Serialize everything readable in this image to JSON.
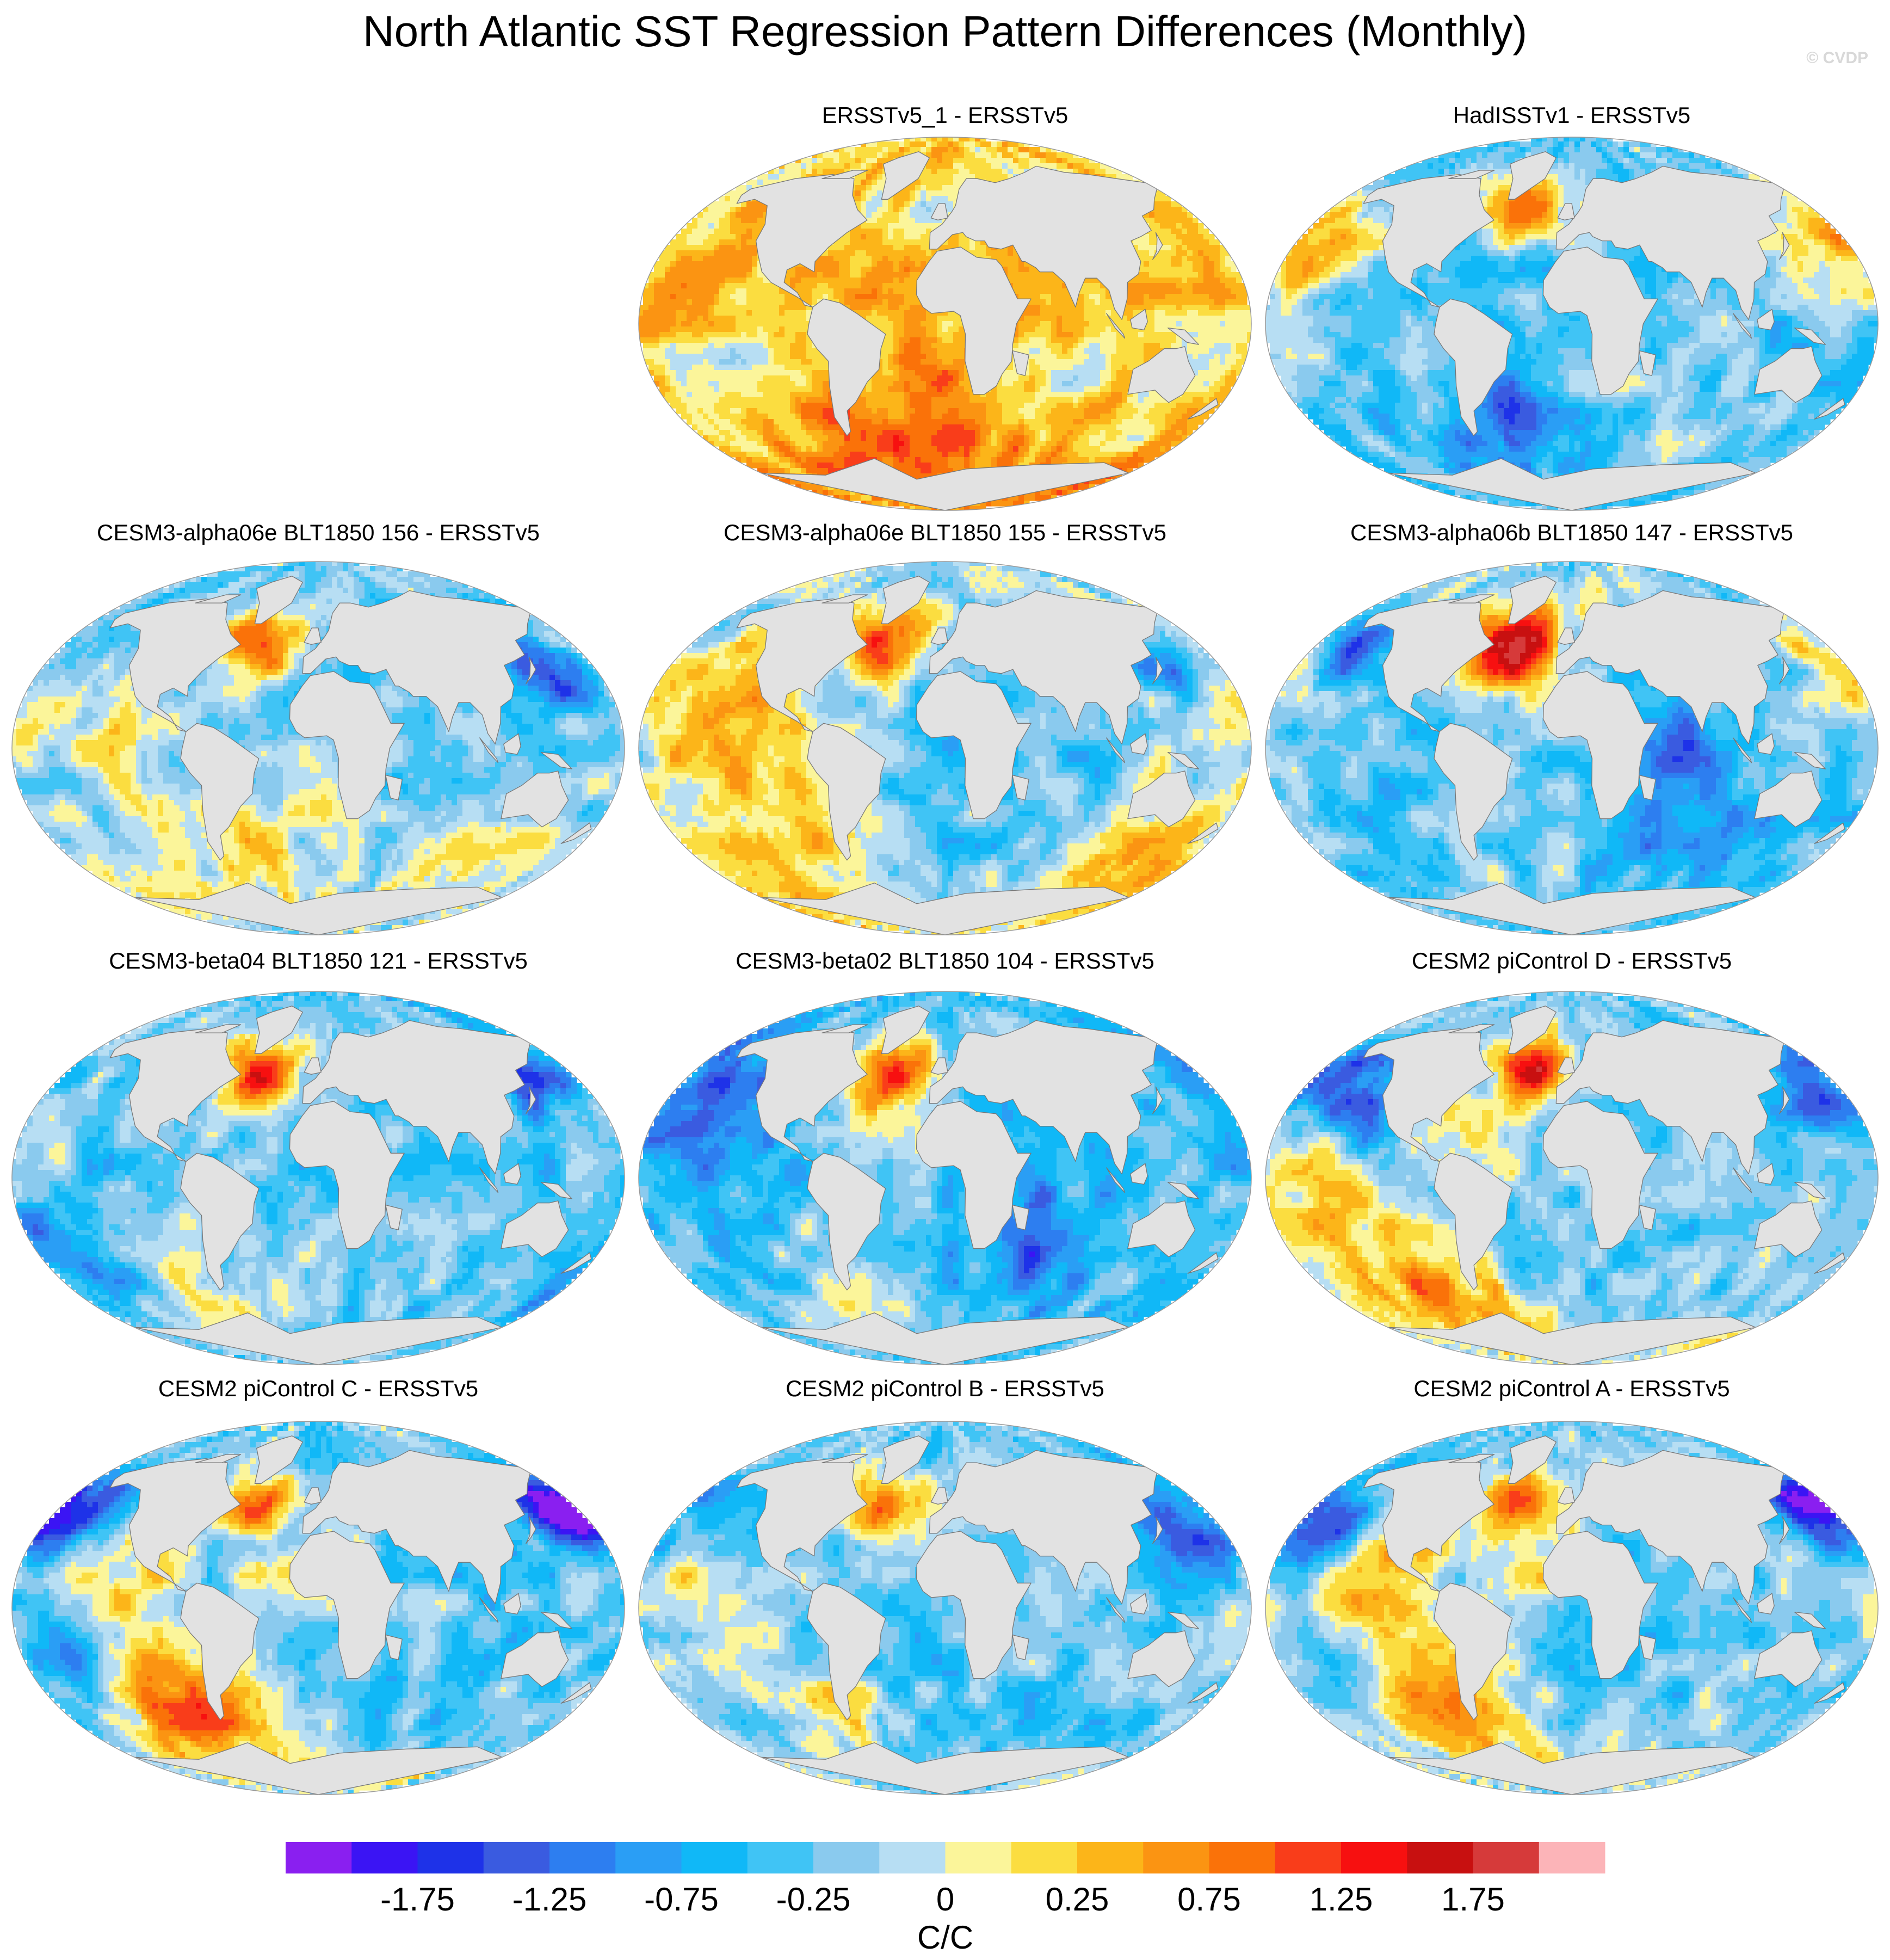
{
  "chart_data": {
    "type": "heatmap",
    "title": "North Atlantic SST Regression Pattern Differences (Monthly)",
    "watermark": "© CVDP",
    "panels": [
      {
        "title": "ERSSTv5_1 - ERSSTv5",
        "pattern": "warm",
        "blobs": [
          {
            "lon": -160,
            "lat": 25,
            "r": 35,
            "v": 0.3
          },
          {
            "lon": -20,
            "lat": 10,
            "r": 30,
            "v": 0.3
          },
          {
            "lon": 30,
            "lat": -50,
            "r": 45,
            "v": 0.6
          },
          {
            "lon": -80,
            "lat": -45,
            "r": 35,
            "v": 0.4
          },
          {
            "lon": 70,
            "lat": -30,
            "r": 22,
            "v": -0.4
          },
          {
            "lon": -130,
            "lat": -30,
            "r": 18,
            "v": -0.3
          },
          {
            "lon": -30,
            "lat": 45,
            "r": 14,
            "v": -0.3
          }
        ]
      },
      {
        "title": "HadISSTv1 - ERSSTv5",
        "pattern": "cool",
        "blobs": [
          {
            "lon": -30,
            "lat": 55,
            "r": 12,
            "v": 1.3
          },
          {
            "lon": -160,
            "lat": 35,
            "r": 20,
            "v": 0.8
          },
          {
            "lon": 160,
            "lat": 35,
            "r": 18,
            "v": 0.6
          },
          {
            "lon": 40,
            "lat": -50,
            "r": 25,
            "v": 0.2
          },
          {
            "lon": -40,
            "lat": -40,
            "r": 20,
            "v": -1.1
          }
        ]
      },
      {
        "title": "CESM3-alpha06e BLT1850 156 - ERSSTv5",
        "pattern": "cool",
        "blobs": [
          {
            "lon": -40,
            "lat": 50,
            "r": 12,
            "v": 1.6
          },
          {
            "lon": -125,
            "lat": 10,
            "r": 40,
            "v": 0.5
          },
          {
            "lon": -60,
            "lat": -45,
            "r": 25,
            "v": 0.5
          },
          {
            "lon": 120,
            "lat": -45,
            "r": 30,
            "v": 0.5
          },
          {
            "lon": 0,
            "lat": -40,
            "r": 20,
            "v": 0.4
          },
          {
            "lon": 150,
            "lat": 35,
            "r": 15,
            "v": -0.9
          }
        ]
      },
      {
        "title": "CESM3-alpha06e BLT1850 155 - ERSSTv5",
        "pattern": "cool",
        "blobs": [
          {
            "lon": -40,
            "lat": 50,
            "r": 12,
            "v": 1.5
          },
          {
            "lon": -140,
            "lat": 25,
            "r": 35,
            "v": 0.8
          },
          {
            "lon": -115,
            "lat": -10,
            "r": 35,
            "v": 0.6
          },
          {
            "lon": -80,
            "lat": -50,
            "r": 25,
            "v": 0.5
          },
          {
            "lon": 140,
            "lat": -50,
            "r": 25,
            "v": 1.0
          },
          {
            "lon": 150,
            "lat": 40,
            "r": 12,
            "v": -1.0
          }
        ]
      },
      {
        "title": "CESM3-alpha06b BLT1850 147 - ERSSTv5",
        "pattern": "cool",
        "blobs": [
          {
            "lon": -40,
            "lat": 50,
            "r": 16,
            "v": 2.2
          },
          {
            "lon": 170,
            "lat": 40,
            "r": 15,
            "v": 1.0
          },
          {
            "lon": -150,
            "lat": 50,
            "r": 10,
            "v": -1.4
          },
          {
            "lon": -20,
            "lat": -60,
            "r": 25,
            "v": 0.3
          },
          {
            "lon": 60,
            "lat": -20,
            "r": 30,
            "v": -0.9
          }
        ]
      },
      {
        "title": "CESM3-beta04 BLT1850 121 - ERSSTv5",
        "pattern": "cool",
        "blobs": [
          {
            "lon": -40,
            "lat": 50,
            "r": 12,
            "v": 1.7
          },
          {
            "lon": -150,
            "lat": 15,
            "r": 30,
            "v": 0.4
          },
          {
            "lon": -90,
            "lat": -50,
            "r": 25,
            "v": 0.7
          },
          {
            "lon": 150,
            "lat": 45,
            "r": 12,
            "v": -1.0
          },
          {
            "lon": -150,
            "lat": -30,
            "r": 30,
            "v": -0.8
          }
        ]
      },
      {
        "title": "CESM3-beta02 BLT1850 104 - ERSSTv5",
        "pattern": "cool",
        "blobs": [
          {
            "lon": -40,
            "lat": 50,
            "r": 14,
            "v": 1.7
          },
          {
            "lon": -70,
            "lat": -50,
            "r": 15,
            "v": 0.6
          },
          {
            "lon": -150,
            "lat": 30,
            "r": 30,
            "v": -0.9
          },
          {
            "lon": 60,
            "lat": -30,
            "r": 25,
            "v": -0.8
          }
        ]
      },
      {
        "title": "CESM2 piControl D - ERSSTv5",
        "pattern": "cool",
        "blobs": [
          {
            "lon": -30,
            "lat": 50,
            "r": 10,
            "v": 2.0
          },
          {
            "lon": -140,
            "lat": 5,
            "r": 40,
            "v": 0.8
          },
          {
            "lon": -40,
            "lat": 15,
            "r": 20,
            "v": 0.4
          },
          {
            "lon": -100,
            "lat": -55,
            "r": 25,
            "v": 1.0
          },
          {
            "lon": -150,
            "lat": 40,
            "r": 15,
            "v": -1.5
          },
          {
            "lon": 160,
            "lat": 40,
            "r": 15,
            "v": -1.3
          },
          {
            "lon": -120,
            "lat": 25,
            "r": 12,
            "v": -1.0
          }
        ]
      },
      {
        "title": "CESM2 piControl C - ERSSTv5",
        "pattern": "cool",
        "blobs": [
          {
            "lon": -40,
            "lat": 48,
            "r": 10,
            "v": 1.5
          },
          {
            "lon": -130,
            "lat": 0,
            "r": 40,
            "v": 0.8
          },
          {
            "lon": -20,
            "lat": 15,
            "r": 18,
            "v": 0.6
          },
          {
            "lon": -90,
            "lat": -50,
            "r": 22,
            "v": 1.3
          },
          {
            "lon": -165,
            "lat": 40,
            "r": 15,
            "v": -1.8
          },
          {
            "lon": 160,
            "lat": 45,
            "r": 12,
            "v": -1.7
          },
          {
            "lon": -150,
            "lat": -20,
            "r": 20,
            "v": -1.2
          }
        ]
      },
      {
        "title": "CESM2 piControl B - ERSSTv5",
        "pattern": "cool",
        "blobs": [
          {
            "lon": -40,
            "lat": 50,
            "r": 12,
            "v": 1.5
          },
          {
            "lon": -150,
            "lat": 5,
            "r": 25,
            "v": 0.6
          },
          {
            "lon": -80,
            "lat": -50,
            "r": 20,
            "v": 0.6
          },
          {
            "lon": 160,
            "lat": 40,
            "r": 15,
            "v": -1.0
          }
        ]
      },
      {
        "title": "CESM2 piControl A - ERSSTv5",
        "pattern": "cool",
        "blobs": [
          {
            "lon": -35,
            "lat": 50,
            "r": 10,
            "v": 1.3
          },
          {
            "lon": -130,
            "lat": 0,
            "r": 45,
            "v": 1.1
          },
          {
            "lon": -20,
            "lat": 15,
            "r": 18,
            "v": 0.5
          },
          {
            "lon": -90,
            "lat": -50,
            "r": 20,
            "v": 0.8
          },
          {
            "lon": -160,
            "lat": 40,
            "r": 15,
            "v": -1.6
          },
          {
            "lon": 160,
            "lat": 45,
            "r": 12,
            "v": -1.9
          },
          {
            "lon": -150,
            "lat": -20,
            "r": 20,
            "v": -1.2
          }
        ]
      }
    ],
    "colorbar": {
      "label": "C/C",
      "colors": [
        "#8a1ff0",
        "#3b14f4",
        "#1e32e8",
        "#3a5be0",
        "#2d7ef0",
        "#2a9ef5",
        "#10b8f7",
        "#40c4f5",
        "#8acaee",
        "#b7def3",
        "#fbf59a",
        "#fbdd40",
        "#fcb519",
        "#fb9412",
        "#fa7209",
        "#f93d1a",
        "#f71010",
        "#c81010",
        "#d63a3a",
        "#fcb4b8"
      ],
      "tick_labels": [
        "-1.75",
        "-1.25",
        "-0.75",
        "-0.25",
        "0",
        "0.25",
        "0.75",
        "1.25",
        "1.75"
      ],
      "range": [
        -2.25,
        2.25
      ]
    }
  }
}
